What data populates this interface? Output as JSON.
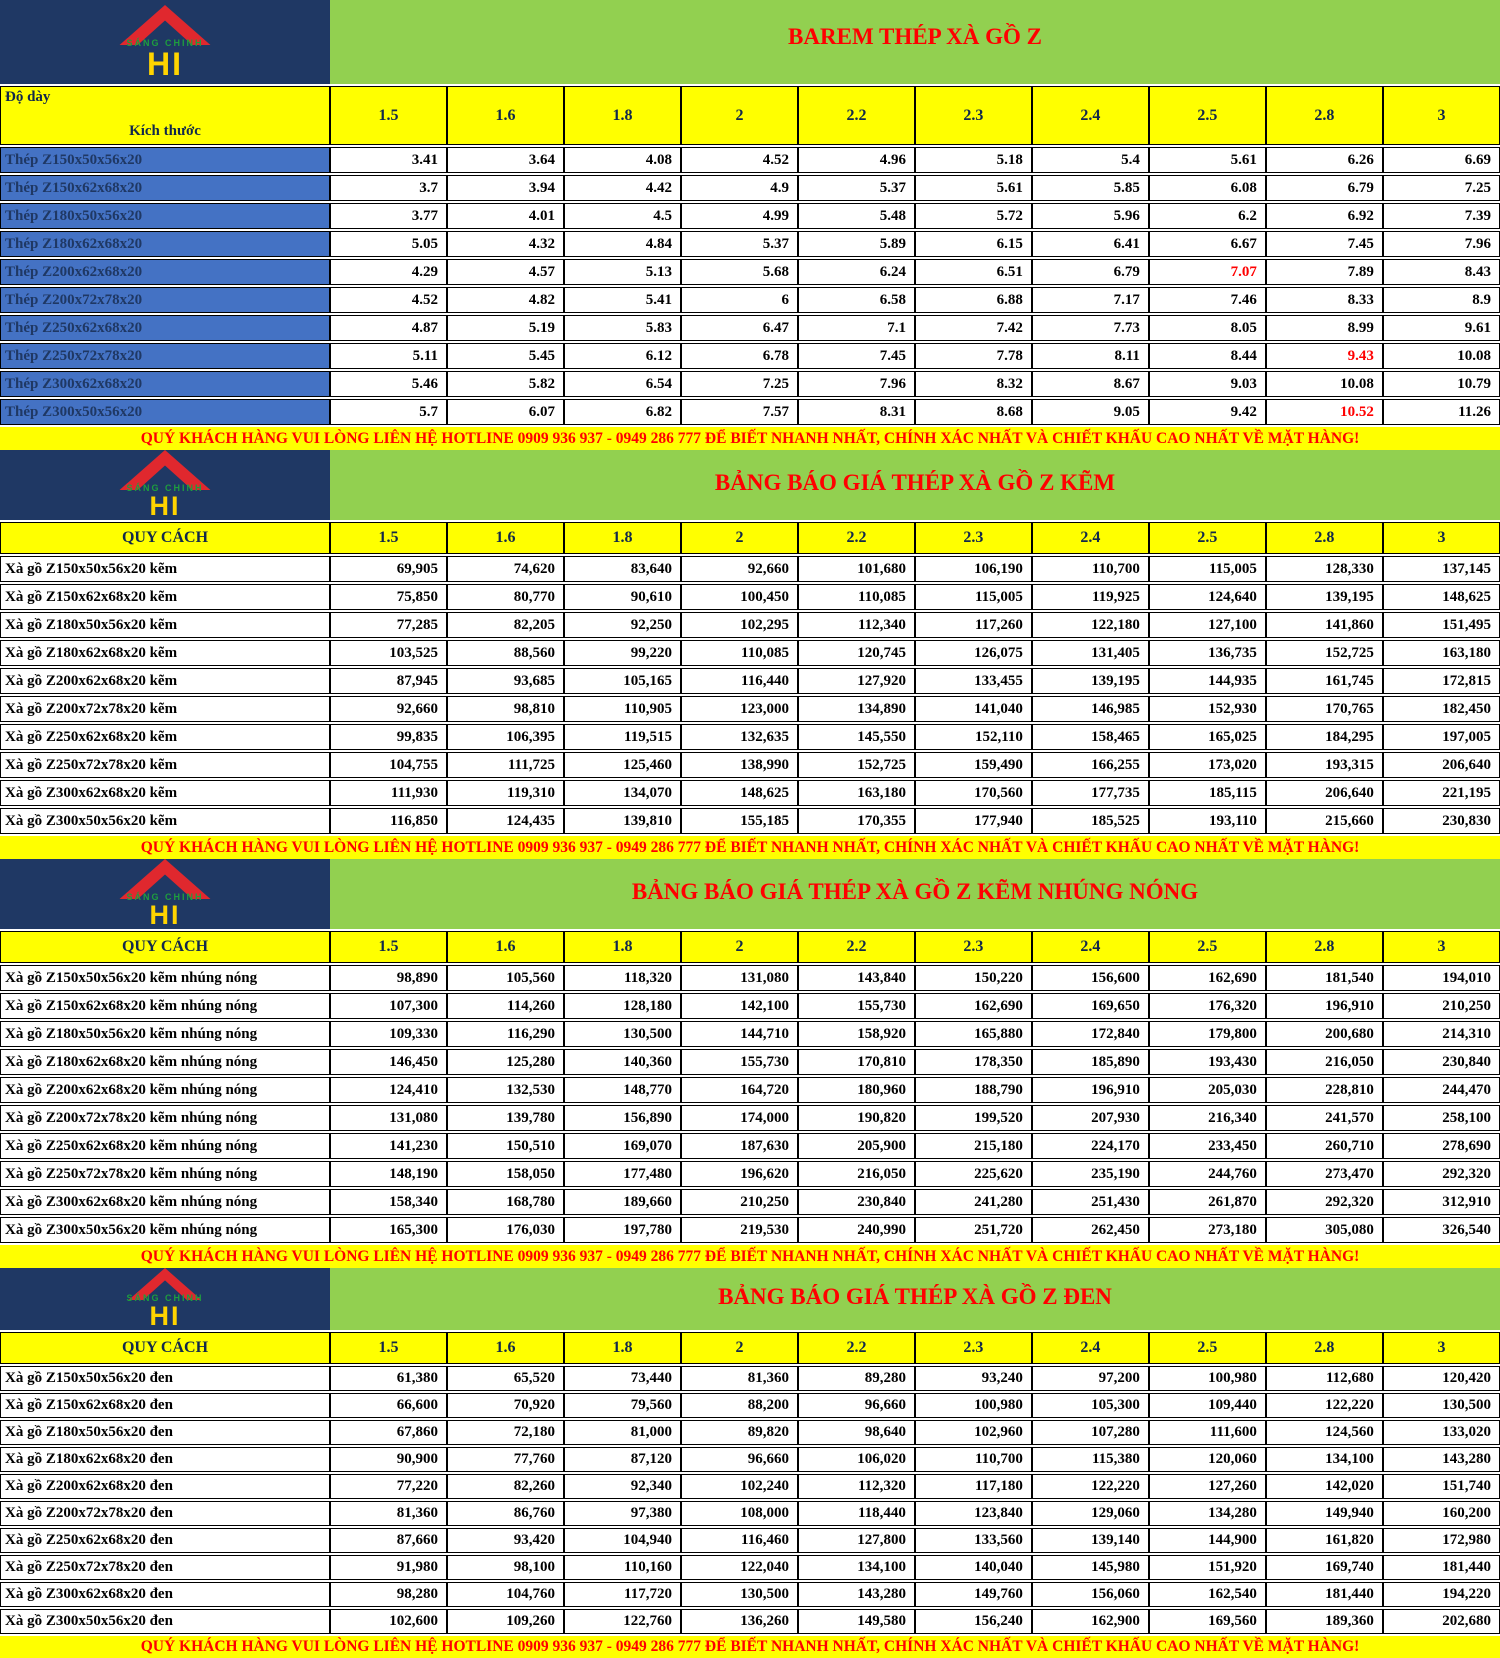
{
  "page": {
    "hotline_banner": "QUÝ KHÁCH HÀNG VUI LÒNG LIÊN HỆ HOTLINE 0909 936 937 - 0949 286 777 ĐỂ BIẾT NHANH NHẤT, CHÍNH XÁC NHẤT VÀ CHIẾT KHẤU CAO NHẤT VỀ MẶT HÀNG!"
  },
  "logo": {
    "brand_small": "SÁNG CHINH",
    "brand_letters": "HI"
  },
  "colors": {
    "navy": "#1F3864",
    "green": "#92D050",
    "yellow": "#FFFF00",
    "row_label_blue": "#4472C4",
    "accent_red": "#FF0000"
  },
  "sections": [
    {
      "title": "BAREM THÉP XÀ GỒ Z",
      "corner": {
        "line1": "Độ dày",
        "line2": "Kích thước"
      },
      "columns": [
        "1.5",
        "1.6",
        "1.8",
        "2",
        "2.2",
        "2.3",
        "2.4",
        "2.5",
        "2.8",
        "3"
      ],
      "rows": [
        {
          "label": "Thép Z150x50x56x20",
          "values": [
            "3.41",
            "3.64",
            "4.08",
            "4.52",
            "4.96",
            "5.18",
            "5.4",
            "5.61",
            "6.26",
            "6.69"
          ],
          "red": []
        },
        {
          "label": "Thép Z150x62x68x20",
          "values": [
            "3.7",
            "3.94",
            "4.42",
            "4.9",
            "5.37",
            "5.61",
            "5.85",
            "6.08",
            "6.79",
            "7.25"
          ],
          "red": []
        },
        {
          "label": "Thép Z180x50x56x20",
          "values": [
            "3.77",
            "4.01",
            "4.5",
            "4.99",
            "5.48",
            "5.72",
            "5.96",
            "6.2",
            "6.92",
            "7.39"
          ],
          "red": []
        },
        {
          "label": "Thép Z180x62x68x20",
          "values": [
            "5.05",
            "4.32",
            "4.84",
            "5.37",
            "5.89",
            "6.15",
            "6.41",
            "6.67",
            "7.45",
            "7.96"
          ],
          "red": []
        },
        {
          "label": "Thép Z200x62x68x20",
          "values": [
            "4.29",
            "4.57",
            "5.13",
            "5.68",
            "6.24",
            "6.51",
            "6.79",
            "7.07",
            "7.89",
            "8.43"
          ],
          "red": [
            7
          ]
        },
        {
          "label": "Thép Z200x72x78x20",
          "values": [
            "4.52",
            "4.82",
            "5.41",
            "6",
            "6.58",
            "6.88",
            "7.17",
            "7.46",
            "8.33",
            "8.9"
          ],
          "red": []
        },
        {
          "label": "Thép Z250x62x68x20",
          "values": [
            "4.87",
            "5.19",
            "5.83",
            "6.47",
            "7.1",
            "7.42",
            "7.73",
            "8.05",
            "8.99",
            "9.61"
          ],
          "red": []
        },
        {
          "label": "Thép Z250x72x78x20",
          "values": [
            "5.11",
            "5.45",
            "6.12",
            "6.78",
            "7.45",
            "7.78",
            "8.11",
            "8.44",
            "9.43",
            "10.08"
          ],
          "red": [
            8
          ]
        },
        {
          "label": "Thép Z300x62x68x20",
          "values": [
            "5.46",
            "5.82",
            "6.54",
            "7.25",
            "7.96",
            "8.32",
            "8.67",
            "9.03",
            "10.08",
            "10.79"
          ],
          "red": []
        },
        {
          "label": "Thép Z300x50x56x20",
          "values": [
            "5.7",
            "6.07",
            "6.82",
            "7.57",
            "8.31",
            "8.68",
            "9.05",
            "9.42",
            "10.52",
            "11.26"
          ],
          "red": [
            8
          ]
        }
      ]
    },
    {
      "title": "BẢNG BÁO GIÁ THÉP XÀ GỒ Z KẼM",
      "corner": {
        "line1": "QUY CÁCH"
      },
      "columns": [
        "1.5",
        "1.6",
        "1.8",
        "2",
        "2.2",
        "2.3",
        "2.4",
        "2.5",
        "2.8",
        "3"
      ],
      "rows": [
        {
          "label": "Xà gồ Z150x50x56x20 kẽm",
          "values": [
            "69,905",
            "74,620",
            "83,640",
            "92,660",
            "101,680",
            "106,190",
            "110,700",
            "115,005",
            "128,330",
            "137,145"
          ],
          "red": []
        },
        {
          "label": "Xà gồ Z150x62x68x20 kẽm",
          "values": [
            "75,850",
            "80,770",
            "90,610",
            "100,450",
            "110,085",
            "115,005",
            "119,925",
            "124,640",
            "139,195",
            "148,625"
          ],
          "red": []
        },
        {
          "label": "Xà gồ Z180x50x56x20 kẽm",
          "values": [
            "77,285",
            "82,205",
            "92,250",
            "102,295",
            "112,340",
            "117,260",
            "122,180",
            "127,100",
            "141,860",
            "151,495"
          ],
          "red": []
        },
        {
          "label": "Xà gồ Z180x62x68x20 kẽm",
          "values": [
            "103,525",
            "88,560",
            "99,220",
            "110,085",
            "120,745",
            "126,075",
            "131,405",
            "136,735",
            "152,725",
            "163,180"
          ],
          "red": []
        },
        {
          "label": "Xà gồ Z200x62x68x20 kẽm",
          "values": [
            "87,945",
            "93,685",
            "105,165",
            "116,440",
            "127,920",
            "133,455",
            "139,195",
            "144,935",
            "161,745",
            "172,815"
          ],
          "red": []
        },
        {
          "label": "Xà gồ Z200x72x78x20 kẽm",
          "values": [
            "92,660",
            "98,810",
            "110,905",
            "123,000",
            "134,890",
            "141,040",
            "146,985",
            "152,930",
            "170,765",
            "182,450"
          ],
          "red": []
        },
        {
          "label": "Xà gồ Z250x62x68x20 kẽm",
          "values": [
            "99,835",
            "106,395",
            "119,515",
            "132,635",
            "145,550",
            "152,110",
            "158,465",
            "165,025",
            "184,295",
            "197,005"
          ],
          "red": []
        },
        {
          "label": "Xà gồ Z250x72x78x20 kẽm",
          "values": [
            "104,755",
            "111,725",
            "125,460",
            "138,990",
            "152,725",
            "159,490",
            "166,255",
            "173,020",
            "193,315",
            "206,640"
          ],
          "red": []
        },
        {
          "label": "Xà gồ Z300x62x68x20 kẽm",
          "values": [
            "111,930",
            "119,310",
            "134,070",
            "148,625",
            "163,180",
            "170,560",
            "177,735",
            "185,115",
            "206,640",
            "221,195"
          ],
          "red": []
        },
        {
          "label": "Xà gồ Z300x50x56x20 kẽm",
          "values": [
            "116,850",
            "124,435",
            "139,810",
            "155,185",
            "170,355",
            "177,940",
            "185,525",
            "193,110",
            "215,660",
            "230,830"
          ],
          "red": []
        }
      ]
    },
    {
      "title": "BẢNG BÁO GIÁ THÉP XÀ GỒ Z KẼM NHÚNG NÓNG",
      "corner": {
        "line1": "QUY CÁCH"
      },
      "columns": [
        "1.5",
        "1.6",
        "1.8",
        "2",
        "2.2",
        "2.3",
        "2.4",
        "2.5",
        "2.8",
        "3"
      ],
      "rows": [
        {
          "label": "Xà gồ Z150x50x56x20 kẽm nhúng nóng",
          "values": [
            "98,890",
            "105,560",
            "118,320",
            "131,080",
            "143,840",
            "150,220",
            "156,600",
            "162,690",
            "181,540",
            "194,010"
          ],
          "red": []
        },
        {
          "label": "Xà gồ Z150x62x68x20 kẽm nhúng nóng",
          "values": [
            "107,300",
            "114,260",
            "128,180",
            "142,100",
            "155,730",
            "162,690",
            "169,650",
            "176,320",
            "196,910",
            "210,250"
          ],
          "red": []
        },
        {
          "label": "Xà gồ Z180x50x56x20 kẽm nhúng nóng",
          "values": [
            "109,330",
            "116,290",
            "130,500",
            "144,710",
            "158,920",
            "165,880",
            "172,840",
            "179,800",
            "200,680",
            "214,310"
          ],
          "red": []
        },
        {
          "label": "Xà gồ Z180x62x68x20 kẽm nhúng nóng",
          "values": [
            "146,450",
            "125,280",
            "140,360",
            "155,730",
            "170,810",
            "178,350",
            "185,890",
            "193,430",
            "216,050",
            "230,840"
          ],
          "red": []
        },
        {
          "label": "Xà gồ Z200x62x68x20 kẽm nhúng nóng",
          "values": [
            "124,410",
            "132,530",
            "148,770",
            "164,720",
            "180,960",
            "188,790",
            "196,910",
            "205,030",
            "228,810",
            "244,470"
          ],
          "red": []
        },
        {
          "label": "Xà gồ Z200x72x78x20 kẽm nhúng nóng",
          "values": [
            "131,080",
            "139,780",
            "156,890",
            "174,000",
            "190,820",
            "199,520",
            "207,930",
            "216,340",
            "241,570",
            "258,100"
          ],
          "red": []
        },
        {
          "label": "Xà gồ Z250x62x68x20 kẽm nhúng nóng",
          "values": [
            "141,230",
            "150,510",
            "169,070",
            "187,630",
            "205,900",
            "215,180",
            "224,170",
            "233,450",
            "260,710",
            "278,690"
          ],
          "red": []
        },
        {
          "label": "Xà gồ Z250x72x78x20 kẽm nhúng nóng",
          "values": [
            "148,190",
            "158,050",
            "177,480",
            "196,620",
            "216,050",
            "225,620",
            "235,190",
            "244,760",
            "273,470",
            "292,320"
          ],
          "red": []
        },
        {
          "label": "Xà gồ Z300x62x68x20 kẽm nhúng nóng",
          "values": [
            "158,340",
            "168,780",
            "189,660",
            "210,250",
            "230,840",
            "241,280",
            "251,430",
            "261,870",
            "292,320",
            "312,910"
          ],
          "red": []
        },
        {
          "label": "Xà gồ Z300x50x56x20 kẽm nhúng nóng",
          "values": [
            "165,300",
            "176,030",
            "197,780",
            "219,530",
            "240,990",
            "251,720",
            "262,450",
            "273,180",
            "305,080",
            "326,540"
          ],
          "red": []
        }
      ]
    },
    {
      "title": "BẢNG BÁO GIÁ THÉP XÀ GỒ Z ĐEN",
      "corner": {
        "line1": "QUY CÁCH"
      },
      "columns": [
        "1.5",
        "1.6",
        "1.8",
        "2",
        "2.2",
        "2.3",
        "2.4",
        "2.5",
        "2.8",
        "3"
      ],
      "rows": [
        {
          "label": "Xà gồ Z150x50x56x20 đen",
          "values": [
            "61,380",
            "65,520",
            "73,440",
            "81,360",
            "89,280",
            "93,240",
            "97,200",
            "100,980",
            "112,680",
            "120,420"
          ],
          "red": []
        },
        {
          "label": "Xà gồ Z150x62x68x20 đen",
          "values": [
            "66,600",
            "70,920",
            "79,560",
            "88,200",
            "96,660",
            "100,980",
            "105,300",
            "109,440",
            "122,220",
            "130,500"
          ],
          "red": []
        },
        {
          "label": "Xà gồ Z180x50x56x20 đen",
          "values": [
            "67,860",
            "72,180",
            "81,000",
            "89,820",
            "98,640",
            "102,960",
            "107,280",
            "111,600",
            "124,560",
            "133,020"
          ],
          "red": []
        },
        {
          "label": "Xà gồ Z180x62x68x20 đen",
          "values": [
            "90,900",
            "77,760",
            "87,120",
            "96,660",
            "106,020",
            "110,700",
            "115,380",
            "120,060",
            "134,100",
            "143,280"
          ],
          "red": []
        },
        {
          "label": "Xà gồ Z200x62x68x20 đen",
          "values": [
            "77,220",
            "82,260",
            "92,340",
            "102,240",
            "112,320",
            "117,180",
            "122,220",
            "127,260",
            "142,020",
            "151,740"
          ],
          "red": []
        },
        {
          "label": "Xà gồ Z200x72x78x20 đen",
          "values": [
            "81,360",
            "86,760",
            "97,380",
            "108,000",
            "118,440",
            "123,840",
            "129,060",
            "134,280",
            "149,940",
            "160,200"
          ],
          "red": []
        },
        {
          "label": "Xà gồ Z250x62x68x20 đen",
          "values": [
            "87,660",
            "93,420",
            "104,940",
            "116,460",
            "127,800",
            "133,560",
            "139,140",
            "144,900",
            "161,820",
            "172,980"
          ],
          "red": []
        },
        {
          "label": "Xà gồ Z250x72x78x20 đen",
          "values": [
            "91,980",
            "98,100",
            "110,160",
            "122,040",
            "134,100",
            "140,040",
            "145,980",
            "151,920",
            "169,740",
            "181,440"
          ],
          "red": []
        },
        {
          "label": "Xà gồ Z300x62x68x20 đen",
          "values": [
            "98,280",
            "104,760",
            "117,720",
            "130,500",
            "143,280",
            "149,760",
            "156,060",
            "162,540",
            "181,440",
            "194,220"
          ],
          "red": []
        },
        {
          "label": "Xà gồ Z300x50x56x20 đen",
          "values": [
            "102,600",
            "109,260",
            "122,760",
            "136,260",
            "149,580",
            "156,240",
            "162,900",
            "169,560",
            "189,360",
            "202,680"
          ],
          "red": []
        }
      ]
    }
  ]
}
